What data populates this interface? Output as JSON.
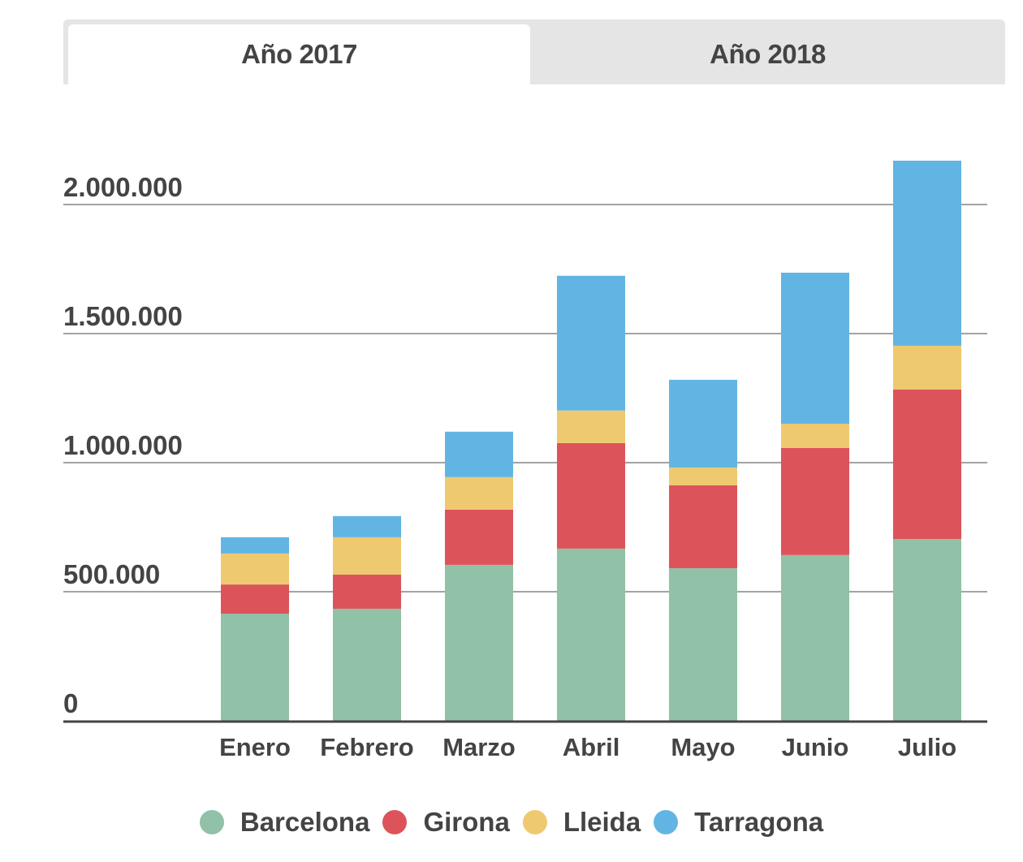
{
  "tabs": [
    {
      "label": "Año 2017",
      "active": true
    },
    {
      "label": "Año 2018",
      "active": false
    }
  ],
  "chart_data": {
    "type": "bar",
    "stacked": true,
    "title": "",
    "xlabel": "",
    "ylabel": "",
    "categories": [
      "Enero",
      "Febrero",
      "Marzo",
      "Abril",
      "Mayo",
      "Junio",
      "Julio"
    ],
    "series": [
      {
        "name": "Barcelona",
        "color": "#91c1a7",
        "values": [
          415000,
          434000,
          604000,
          667000,
          591000,
          642000,
          704000
        ]
      },
      {
        "name": "Girona",
        "color": "#dc545a",
        "values": [
          113000,
          132000,
          214000,
          409000,
          321000,
          415000,
          579000
        ]
      },
      {
        "name": "Lleida",
        "color": "#eec970",
        "values": [
          120000,
          145000,
          126000,
          126000,
          69000,
          94000,
          170000
        ]
      },
      {
        "name": "Tarragona",
        "color": "#62b5e2",
        "values": [
          63000,
          82000,
          176000,
          522000,
          340000,
          585000,
          717000
        ]
      }
    ],
    "yticks": [
      0,
      500000,
      1000000,
      1500000,
      2000000
    ],
    "ytick_labels": [
      "0",
      "500.000",
      "1.000.000",
      "1.500.000",
      "2.000.000"
    ],
    "ylim": [
      0,
      2000000
    ],
    "grid": true,
    "legend_position": "bottom"
  }
}
